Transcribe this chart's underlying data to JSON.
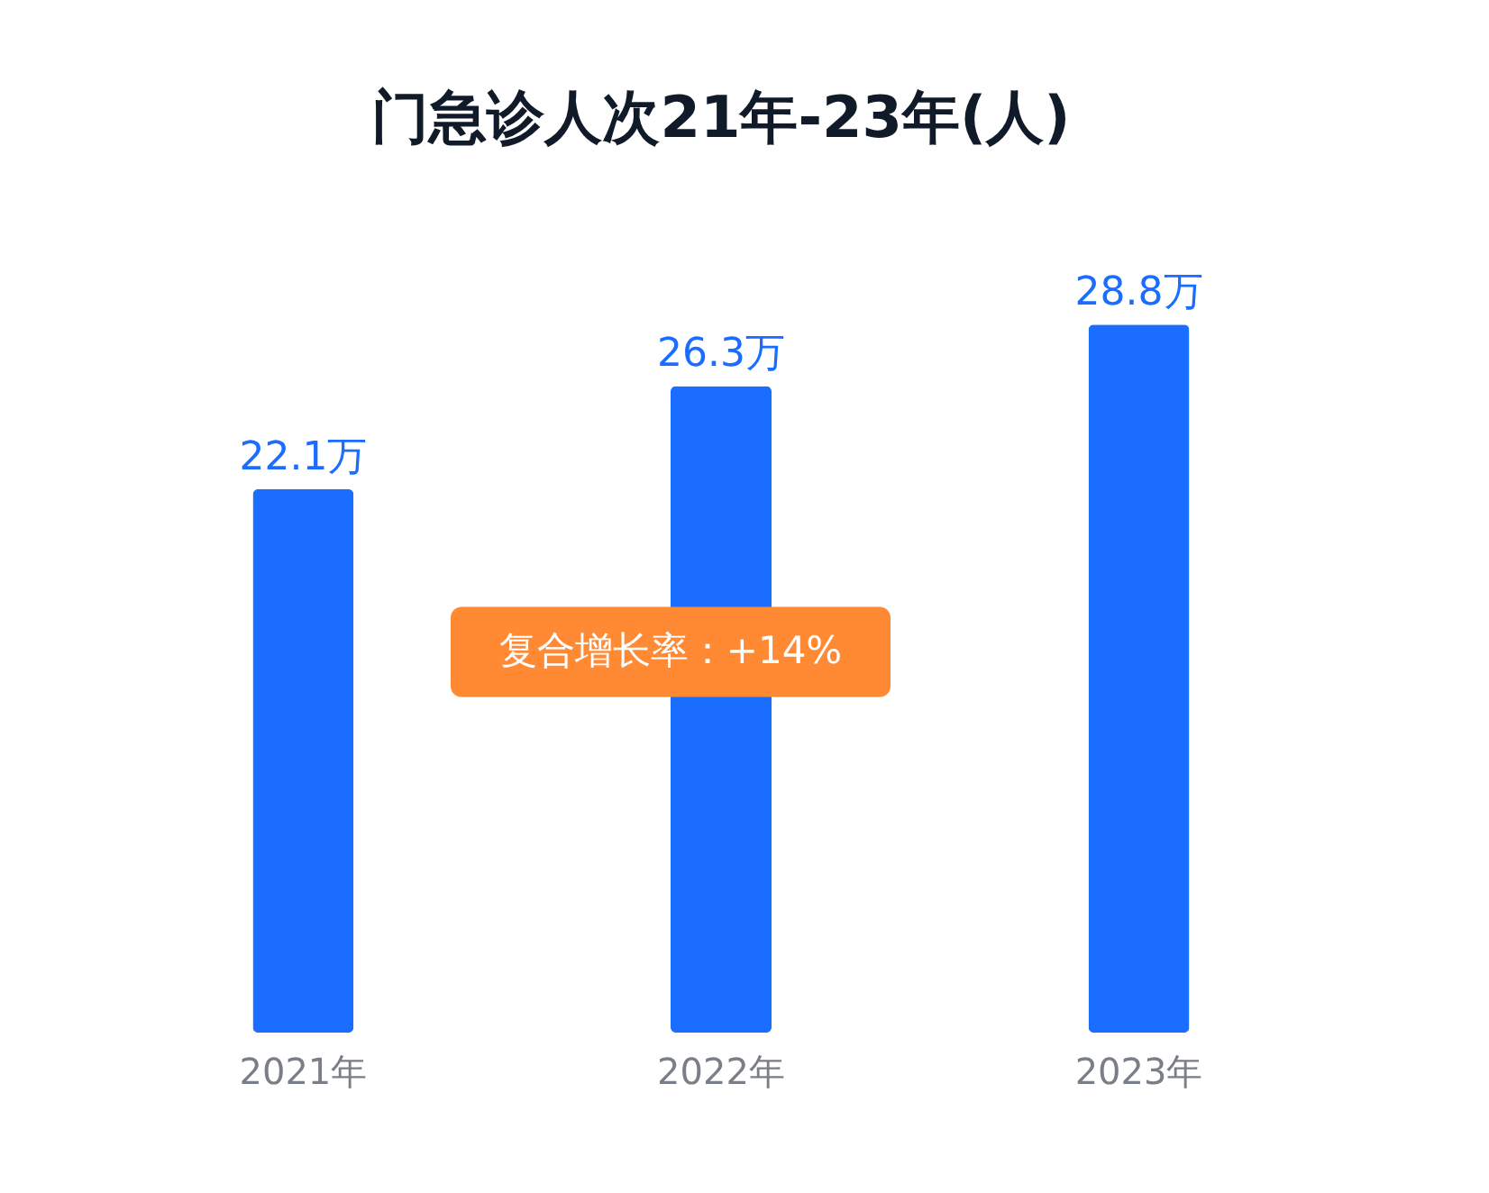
{
  "chart_data": {
    "type": "bar",
    "title": "门急诊人次21年-23年(人)",
    "categories": [
      "2021年",
      "2022年",
      "2023年"
    ],
    "values": [
      22.1,
      26.3,
      28.8
    ],
    "value_labels": [
      "22.1万",
      "26.3万",
      "28.8万"
    ],
    "color": "#1a6dff",
    "annotations": [
      "复合增长率：+14%"
    ],
    "grid": false
  }
}
